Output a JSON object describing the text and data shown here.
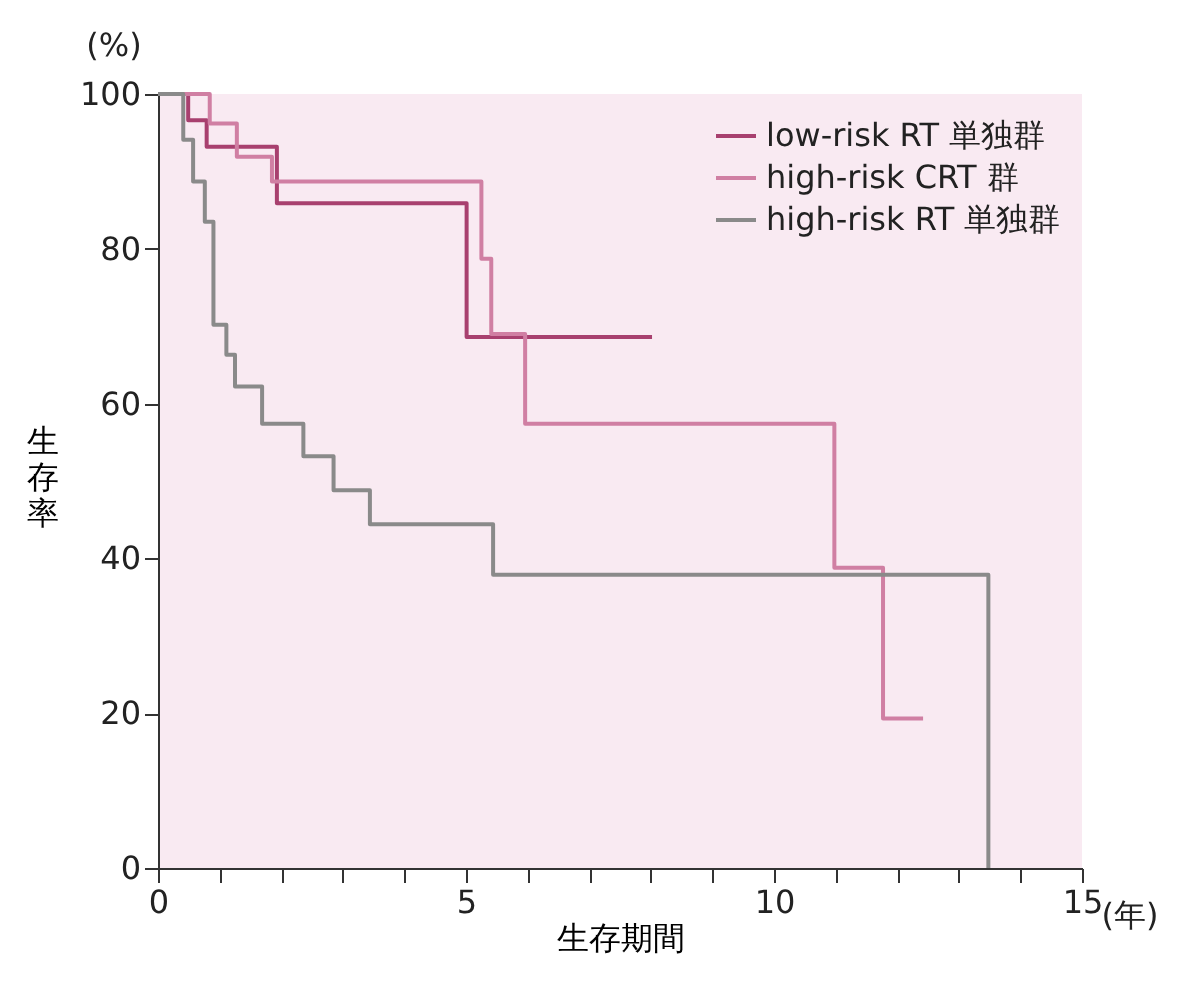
{
  "chart_data": {
    "type": "step",
    "xlabel": "生存期間",
    "ylabel": "生存率",
    "annotations": [
      "(%)",
      "(年)"
    ],
    "xlim": [
      0,
      15
    ],
    "xticks": [
      0,
      {
        "value": 1,
        "label": null
      },
      {
        "value": 2,
        "label": null
      },
      {
        "value": 3,
        "label": null
      },
      {
        "value": 4,
        "label": null
      },
      5,
      {
        "value": 6,
        "label": null
      },
      {
        "value": 7,
        "label": null
      },
      {
        "value": 8,
        "label": null
      },
      {
        "value": 9,
        "label": null
      },
      10,
      {
        "value": 11,
        "label": null
      },
      {
        "value": 12,
        "label": null
      },
      {
        "value": 13,
        "label": null
      },
      {
        "value": 14,
        "label": null
      },
      15
    ],
    "ylim": [
      0,
      100
    ],
    "yticks": [
      0,
      20,
      40,
      60,
      80,
      100
    ],
    "grid": false,
    "legend": "top right",
    "line_style": "solid",
    "marker": "none",
    "series": [
      {
        "name": "low-risk RT 単独群",
        "color": "#a8406f",
        "x": [
          0,
          0.49,
          0.79,
          1.93,
          5.01,
          8.02
        ],
        "values": [
          100,
          96.6,
          93.2,
          85.9,
          68.6,
          68.6
        ]
      },
      {
        "name": "high-risk CRT 群",
        "color": "#d07fa3",
        "x": [
          0,
          0.84,
          1.28,
          1.85,
          5.25,
          5.41,
          5.96,
          10.98,
          11.77,
          12.42
        ],
        "values": [
          100,
          96.2,
          91.9,
          88.7,
          78.7,
          69.0,
          57.4,
          38.8,
          19.3,
          19.3
        ]
      },
      {
        "name": "high-risk RT 単独群",
        "color": "#8a8a8a",
        "x": [
          0,
          0.41,
          0.57,
          0.76,
          0.9,
          1.11,
          1.25,
          1.69,
          2.36,
          2.85,
          3.44,
          5.44,
          13.48
        ],
        "values": [
          100,
          94.1,
          88.7,
          83.5,
          70.2,
          66.3,
          62.2,
          57.4,
          53.2,
          48.8,
          44.4,
          37.9,
          0
        ]
      }
    ]
  }
}
